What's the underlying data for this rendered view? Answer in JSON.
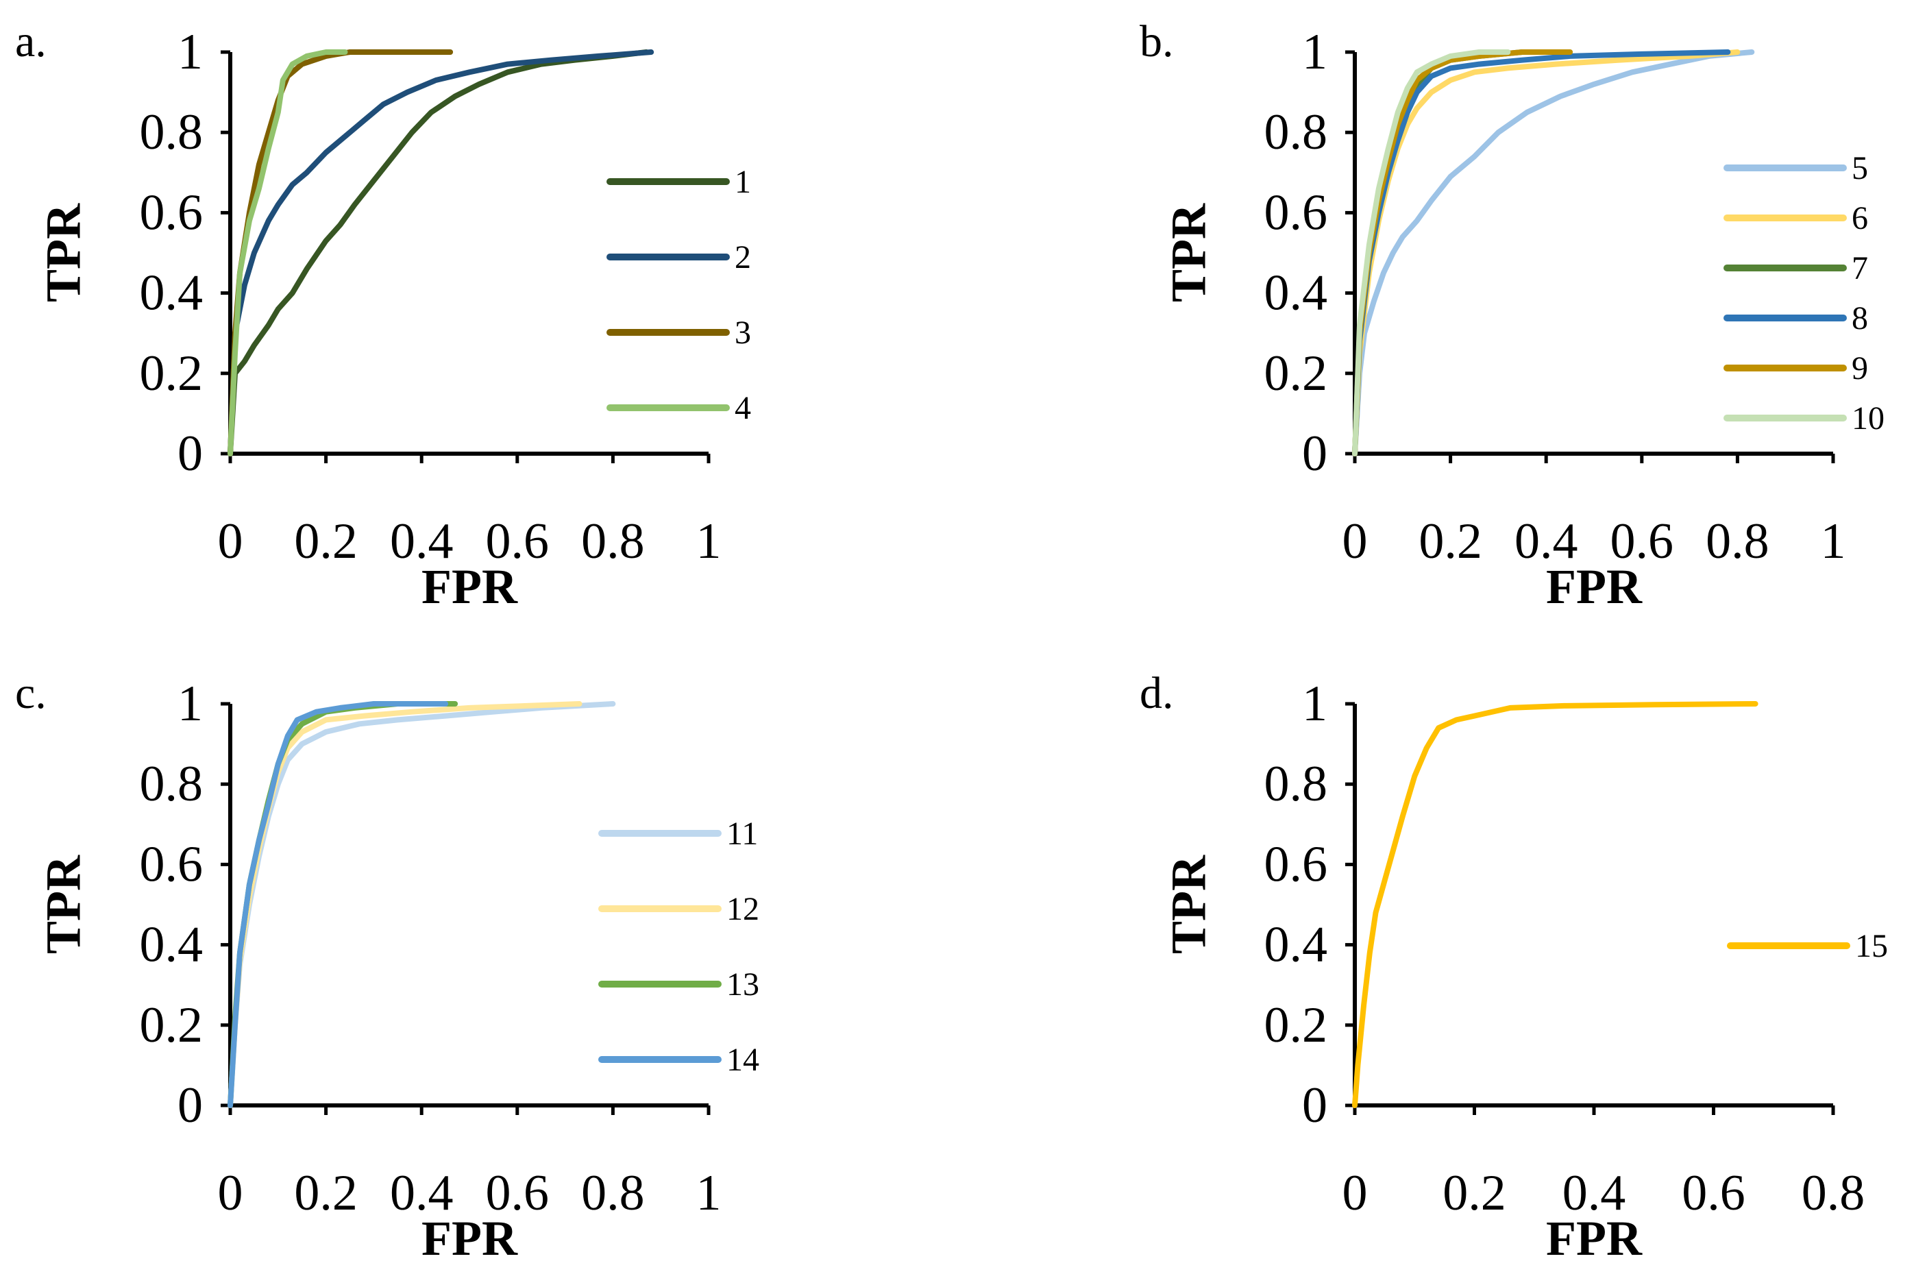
{
  "chart_data": [
    {
      "panel": "a.",
      "type": "line",
      "xlabel": "FPR",
      "ylabel": "TPR",
      "xlim": [
        0,
        1
      ],
      "ylim": [
        0,
        1
      ],
      "xticks": [
        "0",
        "0.2",
        "0.4",
        "0.6",
        "0.8",
        "1"
      ],
      "yticks": [
        "0",
        "0.2",
        "0.4",
        "0.6",
        "0.8",
        "1"
      ],
      "legend_position": "right",
      "series": [
        {
          "name": "1",
          "color": "#375623",
          "x": [
            0,
            0.01,
            0.03,
            0.05,
            0.08,
            0.1,
            0.13,
            0.16,
            0.2,
            0.23,
            0.26,
            0.3,
            0.34,
            0.38,
            0.42,
            0.47,
            0.52,
            0.58,
            0.65,
            0.72,
            0.8,
            0.87
          ],
          "y": [
            0,
            0.2,
            0.23,
            0.27,
            0.32,
            0.36,
            0.4,
            0.46,
            0.53,
            0.57,
            0.62,
            0.68,
            0.74,
            0.8,
            0.85,
            0.89,
            0.92,
            0.95,
            0.97,
            0.98,
            0.99,
            1.0
          ]
        },
        {
          "name": "2",
          "color": "#1F4E79",
          "x": [
            0,
            0.01,
            0.03,
            0.05,
            0.08,
            0.1,
            0.13,
            0.16,
            0.2,
            0.24,
            0.28,
            0.32,
            0.37,
            0.43,
            0.5,
            0.58,
            0.67,
            0.77,
            0.88
          ],
          "y": [
            0,
            0.3,
            0.42,
            0.5,
            0.58,
            0.62,
            0.67,
            0.7,
            0.75,
            0.79,
            0.83,
            0.87,
            0.9,
            0.93,
            0.95,
            0.97,
            0.98,
            0.99,
            1.0
          ]
        },
        {
          "name": "3",
          "color": "#7F6000",
          "x": [
            0,
            0.01,
            0.02,
            0.04,
            0.06,
            0.08,
            0.1,
            0.12,
            0.15,
            0.2,
            0.25,
            0.35,
            0.46
          ],
          "y": [
            0,
            0.3,
            0.45,
            0.6,
            0.72,
            0.8,
            0.88,
            0.94,
            0.97,
            0.99,
            1.0,
            1.0,
            1.0
          ]
        },
        {
          "name": "4",
          "color": "#92C36D",
          "x": [
            0,
            0.01,
            0.02,
            0.04,
            0.06,
            0.08,
            0.1,
            0.11,
            0.13,
            0.16,
            0.2,
            0.24
          ],
          "y": [
            0,
            0.25,
            0.45,
            0.58,
            0.66,
            0.76,
            0.85,
            0.93,
            0.97,
            0.99,
            1.0,
            1.0
          ]
        }
      ]
    },
    {
      "panel": "b.",
      "type": "line",
      "xlabel": "FPR",
      "ylabel": "TPR",
      "xlim": [
        0,
        1
      ],
      "ylim": [
        0,
        1
      ],
      "xticks": [
        "0",
        "0.2",
        "0.4",
        "0.6",
        "0.8",
        "1"
      ],
      "yticks": [
        "0",
        "0.2",
        "0.4",
        "0.6",
        "0.8",
        "1"
      ],
      "legend_position": "right",
      "series": [
        {
          "name": "5",
          "color": "#9DC3E6",
          "x": [
            0,
            0.01,
            0.02,
            0.04,
            0.06,
            0.08,
            0.1,
            0.13,
            0.16,
            0.2,
            0.25,
            0.3,
            0.36,
            0.43,
            0.5,
            0.58,
            0.66,
            0.74,
            0.83
          ],
          "y": [
            0,
            0.2,
            0.3,
            0.38,
            0.45,
            0.5,
            0.54,
            0.58,
            0.63,
            0.69,
            0.74,
            0.8,
            0.85,
            0.89,
            0.92,
            0.95,
            0.97,
            0.99,
            1.0
          ]
        },
        {
          "name": "6",
          "color": "#FFD966",
          "x": [
            0,
            0.01,
            0.03,
            0.05,
            0.07,
            0.09,
            0.11,
            0.13,
            0.16,
            0.2,
            0.25,
            0.32,
            0.42,
            0.55,
            0.7,
            0.8
          ],
          "y": [
            0,
            0.25,
            0.45,
            0.58,
            0.68,
            0.76,
            0.82,
            0.86,
            0.9,
            0.93,
            0.95,
            0.96,
            0.97,
            0.98,
            0.99,
            1.0
          ]
        },
        {
          "name": "7",
          "color": "#548235",
          "x": [
            0,
            0.01,
            0.03,
            0.05,
            0.07,
            0.09,
            0.11,
            0.13,
            0.16,
            0.2,
            0.26,
            0.35
          ],
          "y": [
            0,
            0.3,
            0.5,
            0.62,
            0.72,
            0.8,
            0.87,
            0.92,
            0.96,
            0.98,
            0.99,
            1.0
          ]
        },
        {
          "name": "8",
          "color": "#2E75B6",
          "x": [
            0,
            0.01,
            0.03,
            0.05,
            0.07,
            0.09,
            0.11,
            0.13,
            0.16,
            0.2,
            0.26,
            0.35,
            0.45,
            0.6,
            0.78
          ],
          "y": [
            0,
            0.28,
            0.48,
            0.6,
            0.7,
            0.78,
            0.85,
            0.9,
            0.94,
            0.96,
            0.97,
            0.98,
            0.99,
            0.995,
            1.0
          ]
        },
        {
          "name": "9",
          "color": "#BF9000",
          "x": [
            0,
            0.01,
            0.03,
            0.05,
            0.07,
            0.09,
            0.11,
            0.13,
            0.16,
            0.2,
            0.26,
            0.35,
            0.45
          ],
          "y": [
            0,
            0.3,
            0.5,
            0.63,
            0.73,
            0.82,
            0.88,
            0.93,
            0.96,
            0.98,
            0.99,
            1.0,
            1.0
          ]
        },
        {
          "name": "10",
          "color": "#C5E0B4",
          "x": [
            0,
            0.01,
            0.03,
            0.05,
            0.07,
            0.09,
            0.11,
            0.13,
            0.16,
            0.2,
            0.26,
            0.32
          ],
          "y": [
            0,
            0.32,
            0.52,
            0.66,
            0.76,
            0.85,
            0.91,
            0.95,
            0.97,
            0.99,
            1.0,
            1.0
          ]
        }
      ]
    },
    {
      "panel": "c.",
      "type": "line",
      "xlabel": "FPR",
      "ylabel": "TPR",
      "xlim": [
        0,
        1
      ],
      "ylim": [
        0,
        1
      ],
      "xticks": [
        "0",
        "0.2",
        "0.4",
        "0.6",
        "0.8",
        "1"
      ],
      "yticks": [
        "0",
        "0.2",
        "0.4",
        "0.6",
        "0.8",
        "1"
      ],
      "legend_position": "right",
      "series": [
        {
          "name": "11",
          "color": "#BDD7EE",
          "x": [
            0,
            0.01,
            0.02,
            0.04,
            0.06,
            0.08,
            0.1,
            0.12,
            0.15,
            0.2,
            0.27,
            0.35,
            0.45,
            0.55,
            0.65,
            0.8
          ],
          "y": [
            0,
            0.2,
            0.35,
            0.5,
            0.62,
            0.72,
            0.8,
            0.86,
            0.9,
            0.93,
            0.95,
            0.96,
            0.97,
            0.98,
            0.99,
            1.0
          ]
        },
        {
          "name": "12",
          "color": "#FFE699",
          "x": [
            0,
            0.01,
            0.02,
            0.04,
            0.06,
            0.08,
            0.1,
            0.12,
            0.15,
            0.2,
            0.28,
            0.38,
            0.5,
            0.62,
            0.73
          ],
          "y": [
            0,
            0.2,
            0.36,
            0.52,
            0.64,
            0.74,
            0.83,
            0.89,
            0.93,
            0.96,
            0.97,
            0.98,
            0.99,
            0.995,
            1.0
          ]
        },
        {
          "name": "13",
          "color": "#70AD47",
          "x": [
            0,
            0.01,
            0.02,
            0.04,
            0.06,
            0.08,
            0.1,
            0.12,
            0.15,
            0.2,
            0.26,
            0.35,
            0.47
          ],
          "y": [
            0,
            0.22,
            0.38,
            0.55,
            0.66,
            0.76,
            0.85,
            0.91,
            0.95,
            0.98,
            0.99,
            1.0,
            1.0
          ]
        },
        {
          "name": "14",
          "color": "#5B9BD5",
          "x": [
            0,
            0.01,
            0.02,
            0.04,
            0.06,
            0.08,
            0.1,
            0.12,
            0.14,
            0.18,
            0.23,
            0.3,
            0.45
          ],
          "y": [
            0,
            0.2,
            0.38,
            0.55,
            0.66,
            0.75,
            0.85,
            0.92,
            0.96,
            0.98,
            0.99,
            1.0,
            1.0
          ]
        }
      ]
    },
    {
      "panel": "d.",
      "type": "line",
      "xlabel": "FPR",
      "ylabel": "TPR",
      "xlim": [
        0,
        0.8
      ],
      "ylim": [
        0,
        1
      ],
      "xticks": [
        "0",
        "0.2",
        "0.4",
        "0.6",
        "0.8"
      ],
      "yticks": [
        "0",
        "0.2",
        "0.4",
        "0.6",
        "0.8",
        "1"
      ],
      "legend_position": "right",
      "series": [
        {
          "name": "15",
          "color": "#FFC000",
          "x": [
            0,
            0.005,
            0.015,
            0.025,
            0.035,
            0.05,
            0.065,
            0.08,
            0.1,
            0.12,
            0.14,
            0.17,
            0.2,
            0.26,
            0.35,
            0.5,
            0.67
          ],
          "y": [
            0,
            0.1,
            0.25,
            0.38,
            0.48,
            0.56,
            0.64,
            0.72,
            0.82,
            0.89,
            0.94,
            0.96,
            0.97,
            0.99,
            0.995,
            0.998,
            1.0
          ]
        }
      ]
    }
  ]
}
